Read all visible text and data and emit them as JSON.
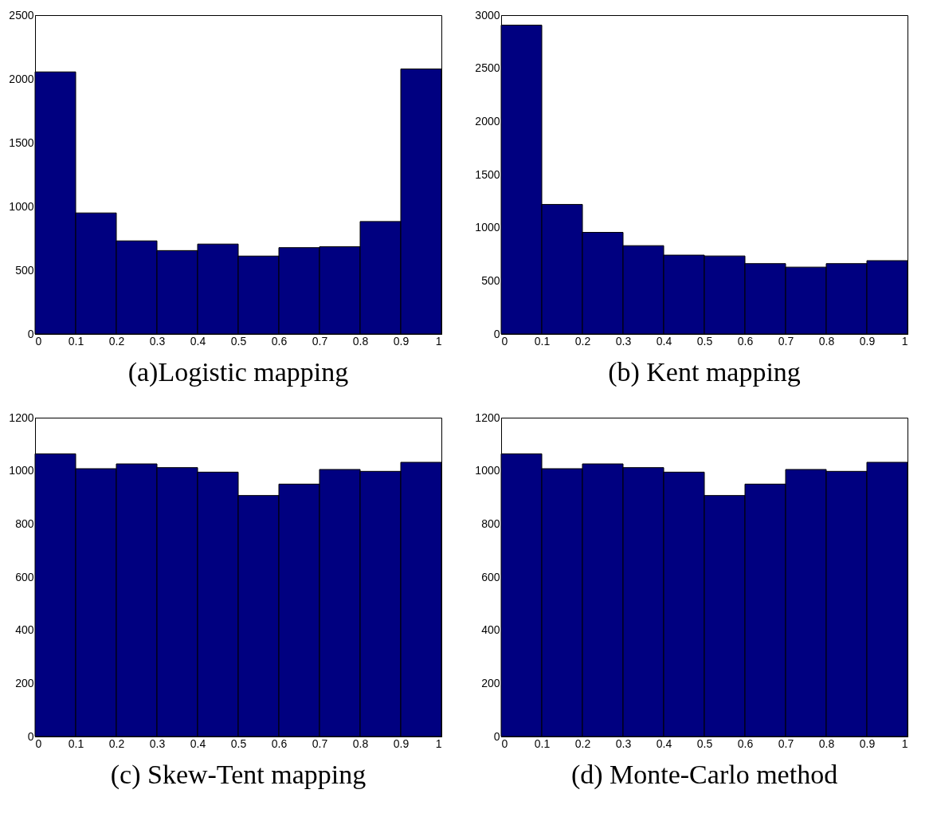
{
  "chart_data": [
    {
      "type": "histogram",
      "title": "(a)Logistic mapping",
      "bins": [
        0,
        0.1,
        0.2,
        0.3,
        0.4,
        0.5,
        0.6,
        0.7,
        0.8,
        0.9,
        1
      ],
      "values": [
        2055,
        949,
        730,
        654,
        705,
        611,
        677,
        684,
        882,
        2078
      ],
      "color": "#000080",
      "xlim": [
        0,
        1
      ],
      "xticks": [
        0,
        0.1,
        0.2,
        0.3,
        0.4,
        0.5,
        0.6,
        0.7,
        0.8,
        0.9,
        1
      ],
      "ylim": [
        0,
        2500
      ],
      "yticks": [
        0,
        500,
        1000,
        1500,
        2000,
        2500
      ]
    },
    {
      "type": "histogram",
      "title": "(b) Kent mapping",
      "bins": [
        0,
        0.1,
        0.2,
        0.3,
        0.4,
        0.5,
        0.6,
        0.7,
        0.8,
        0.9,
        1
      ],
      "values": [
        2906,
        1219,
        956,
        831,
        742,
        734,
        662,
        629,
        662,
        690
      ],
      "color": "#000080",
      "xlim": [
        0,
        1
      ],
      "xticks": [
        0,
        0.1,
        0.2,
        0.3,
        0.4,
        0.5,
        0.6,
        0.7,
        0.8,
        0.9,
        1
      ],
      "ylim": [
        0,
        3000
      ],
      "yticks": [
        0,
        500,
        1000,
        1500,
        2000,
        2500,
        3000
      ]
    },
    {
      "type": "histogram",
      "title": "(c) Skew-Tent mapping",
      "bins": [
        0,
        0.1,
        0.2,
        0.3,
        0.4,
        0.5,
        0.6,
        0.7,
        0.8,
        0.9,
        1
      ],
      "values": [
        1064,
        1008,
        1026,
        1012,
        995,
        907,
        950,
        1005,
        998,
        1032
      ],
      "color": "#000080",
      "xlim": [
        0,
        1
      ],
      "xticks": [
        0,
        0.1,
        0.2,
        0.3,
        0.4,
        0.5,
        0.6,
        0.7,
        0.8,
        0.9,
        1
      ],
      "ylim": [
        0,
        1200
      ],
      "yticks": [
        0,
        200,
        400,
        600,
        800,
        1000,
        1200
      ]
    },
    {
      "type": "histogram",
      "title": "(d) Monte-Carlo method",
      "bins": [
        0,
        0.1,
        0.2,
        0.3,
        0.4,
        0.5,
        0.6,
        0.7,
        0.8,
        0.9,
        1
      ],
      "values": [
        1064,
        1008,
        1026,
        1012,
        995,
        907,
        950,
        1005,
        998,
        1032
      ],
      "color": "#000080",
      "xlim": [
        0,
        1
      ],
      "xticks": [
        0,
        0.1,
        0.2,
        0.3,
        0.4,
        0.5,
        0.6,
        0.7,
        0.8,
        0.9,
        1
      ],
      "ylim": [
        0,
        1200
      ],
      "yticks": [
        0,
        200,
        400,
        600,
        800,
        1000,
        1200
      ]
    }
  ]
}
